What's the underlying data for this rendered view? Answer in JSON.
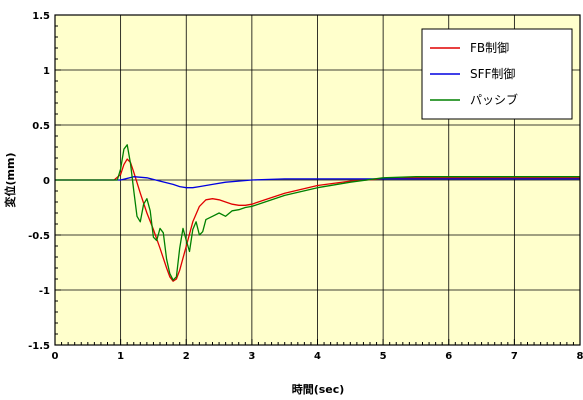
{
  "chart_data": {
    "type": "line",
    "xlabel": "時間(sec)",
    "ylabel": "変位(mm)",
    "xlim": [
      0,
      8
    ],
    "ylim": [
      -1.5,
      1.5
    ],
    "x_ticks": [
      "0",
      "1",
      "2",
      "3",
      "4",
      "5",
      "6",
      "7",
      "8"
    ],
    "y_ticks": [
      "1.5",
      "1",
      "0.5",
      "0",
      "-0.5",
      "-1",
      "-1.5"
    ],
    "grid": true,
    "legend_position": "top-right",
    "colors": {
      "plot_bg": "#ffffcc",
      "grid": "#000000"
    },
    "series": [
      {
        "name": "FB制御",
        "color": "#e00000",
        "x": [
          0,
          0.9,
          1.0,
          1.05,
          1.1,
          1.15,
          1.2,
          1.3,
          1.4,
          1.5,
          1.6,
          1.7,
          1.75,
          1.8,
          1.85,
          1.9,
          2.0,
          2.1,
          2.2,
          2.3,
          2.4,
          2.5,
          2.6,
          2.7,
          2.8,
          2.9,
          3.0,
          3.2,
          3.5,
          4.0,
          4.5,
          5.0,
          5.5,
          6.0,
          7.0,
          8.0
        ],
        "y": [
          0,
          0,
          0.05,
          0.14,
          0.19,
          0.16,
          0.07,
          -0.12,
          -0.3,
          -0.45,
          -0.62,
          -0.8,
          -0.88,
          -0.92,
          -0.9,
          -0.82,
          -0.6,
          -0.38,
          -0.24,
          -0.18,
          -0.17,
          -0.18,
          -0.2,
          -0.22,
          -0.23,
          -0.23,
          -0.22,
          -0.18,
          -0.12,
          -0.05,
          -0.01,
          0.01,
          0.02,
          0.02,
          0.02,
          0.02
        ]
      },
      {
        "name": "SFF制御",
        "color": "#0000e0",
        "x": [
          0,
          1.0,
          1.2,
          1.4,
          1.6,
          1.8,
          1.9,
          2.0,
          2.1,
          2.2,
          2.4,
          2.6,
          2.8,
          3.0,
          3.5,
          4.0,
          5.0,
          6.0,
          7.0,
          8.0
        ],
        "y": [
          0,
          0,
          0.03,
          0.02,
          -0.01,
          -0.04,
          -0.06,
          -0.07,
          -0.07,
          -0.06,
          -0.04,
          -0.02,
          -0.01,
          0,
          0.01,
          0.01,
          0.01,
          0.01,
          0.01,
          0.01
        ]
      },
      {
        "name": "パッシブ",
        "color": "#008000",
        "x": [
          0,
          0.95,
          1.0,
          1.05,
          1.1,
          1.15,
          1.2,
          1.25,
          1.3,
          1.35,
          1.4,
          1.45,
          1.5,
          1.55,
          1.6,
          1.65,
          1.7,
          1.75,
          1.8,
          1.85,
          1.9,
          1.95,
          2.0,
          2.05,
          2.1,
          2.15,
          2.2,
          2.25,
          2.3,
          2.4,
          2.5,
          2.6,
          2.7,
          2.8,
          2.9,
          3.0,
          3.2,
          3.5,
          4.0,
          4.5,
          5.0,
          5.5,
          6.0,
          6.5,
          7.0,
          7.5,
          8.0
        ],
        "y": [
          0,
          0,
          0.1,
          0.28,
          0.32,
          0.15,
          -0.1,
          -0.33,
          -0.38,
          -0.22,
          -0.17,
          -0.28,
          -0.52,
          -0.55,
          -0.44,
          -0.48,
          -0.72,
          -0.85,
          -0.91,
          -0.88,
          -0.62,
          -0.44,
          -0.55,
          -0.65,
          -0.45,
          -0.38,
          -0.5,
          -0.47,
          -0.36,
          -0.33,
          -0.3,
          -0.33,
          -0.28,
          -0.27,
          -0.25,
          -0.24,
          -0.2,
          -0.14,
          -0.07,
          -0.02,
          0.02,
          0.03,
          0.03,
          0.03,
          0.03,
          0.03,
          0.03
        ]
      }
    ]
  }
}
